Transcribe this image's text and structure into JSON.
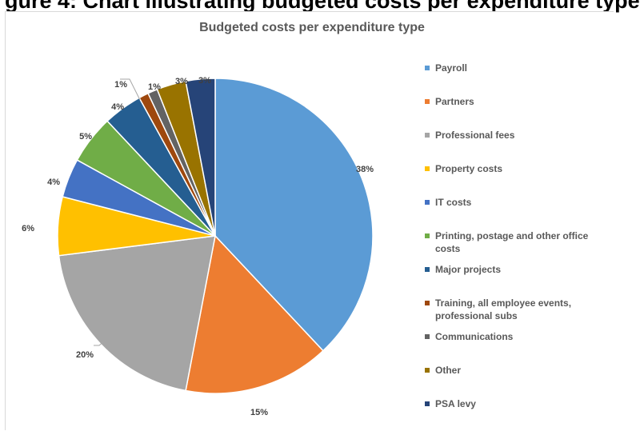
{
  "caption": "gure 4: Chart illustrating budgeted costs per expenditure type",
  "chart_data": {
    "type": "pie",
    "title": "Budgeted costs per expenditure type",
    "legend_position": "right",
    "series": [
      {
        "name": "Payroll",
        "value": 38,
        "label": "38%",
        "color": "#5b9bd5"
      },
      {
        "name": "Partners",
        "value": 15,
        "label": "15%",
        "color": "#ed7d31"
      },
      {
        "name": "Professional fees",
        "value": 20,
        "label": "20%",
        "color": "#a5a5a5"
      },
      {
        "name": "Property costs",
        "value": 6,
        "label": "6%",
        "color": "#ffc000"
      },
      {
        "name": "IT costs",
        "value": 4,
        "label": "4%",
        "color": "#4472c4"
      },
      {
        "name": "Printing, postage and other office costs",
        "value": 5,
        "label": "5%",
        "color": "#70ad47"
      },
      {
        "name": "Major projects",
        "value": 4,
        "label": "4%",
        "color": "#255e91"
      },
      {
        "name": "Training, all employee events, professional subs",
        "value": 1,
        "label": "1%",
        "color": "#9e480e"
      },
      {
        "name": "Communications",
        "value": 1,
        "label": "1%",
        "color": "#636363"
      },
      {
        "name": "Other",
        "value": 3,
        "label": "3%",
        "color": "#997300"
      },
      {
        "name": "PSA levy",
        "value": 3,
        "label": "3%",
        "color": "#264478"
      }
    ]
  }
}
